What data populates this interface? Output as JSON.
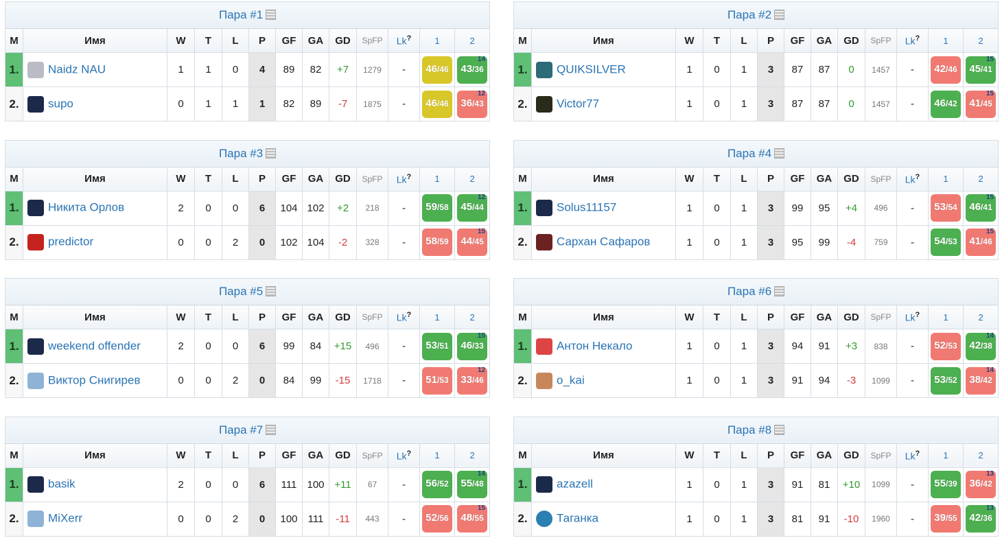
{
  "headers": {
    "m": "M",
    "name": "Имя",
    "w": "W",
    "t": "T",
    "l": "L",
    "p": "P",
    "gf": "GF",
    "ga": "GA",
    "gd": "GD",
    "spfp": "SpFP",
    "lk": "Lk",
    "lk_help": "?",
    "g1": "1",
    "g2": "2"
  },
  "colors": {
    "win": "#4caf50",
    "lose": "#f07a72",
    "draw": "#d8c728",
    "leader": "#5fbf75",
    "link": "#2a74b4"
  },
  "pairs": [
    {
      "title": "Пара #1",
      "rows": [
        {
          "pos": "1.",
          "name": "Naidz NAU",
          "avatar": "arrow-avatar-icon",
          "w": "1",
          "t": "1",
          "l": "0",
          "p": "4",
          "gf": "89",
          "ga": "82",
          "gd": "+7",
          "spfp": "1279",
          "lk": "-",
          "games": [
            {
              "s": "46",
              "c": "46",
              "r": "draw",
              "rd": ""
            },
            {
              "s": "43",
              "c": "36",
              "r": "win",
              "rd": "14"
            }
          ]
        },
        {
          "pos": "2.",
          "name": "supo",
          "avatar": "jersey-avatar-icon",
          "w": "0",
          "t": "1",
          "l": "1",
          "p": "1",
          "gf": "82",
          "ga": "89",
          "gd": "-7",
          "spfp": "1875",
          "lk": "-",
          "games": [
            {
              "s": "46",
              "c": "46",
              "r": "draw",
              "rd": ""
            },
            {
              "s": "36",
              "c": "43",
              "r": "lose",
              "rd": "12"
            }
          ]
        }
      ]
    },
    {
      "title": "Пара #2",
      "rows": [
        {
          "pos": "1.",
          "name": "QUIKSILVER",
          "avatar": "wave-avatar-icon",
          "w": "1",
          "t": "0",
          "l": "1",
          "p": "3",
          "gf": "87",
          "ga": "87",
          "gd": "0",
          "spfp": "1457",
          "lk": "-",
          "games": [
            {
              "s": "42",
              "c": "46",
              "r": "lose",
              "rd": ""
            },
            {
              "s": "45",
              "c": "41",
              "r": "win",
              "rd": "15"
            }
          ]
        },
        {
          "pos": "2.",
          "name": "Victor77",
          "avatar": "number-avatar-icon",
          "w": "1",
          "t": "0",
          "l": "1",
          "p": "3",
          "gf": "87",
          "ga": "87",
          "gd": "0",
          "spfp": "1457",
          "lk": "-",
          "games": [
            {
              "s": "46",
              "c": "42",
              "r": "win",
              "rd": ""
            },
            {
              "s": "41",
              "c": "45",
              "r": "lose",
              "rd": "15"
            }
          ]
        }
      ]
    },
    {
      "title": "Пара #3",
      "rows": [
        {
          "pos": "1.",
          "name": "Никита Орлов",
          "avatar": "jersey-avatar-icon",
          "w": "2",
          "t": "0",
          "l": "0",
          "p": "6",
          "gf": "104",
          "ga": "102",
          "gd": "+2",
          "spfp": "218",
          "lk": "-",
          "games": [
            {
              "s": "59",
              "c": "58",
              "r": "win",
              "rd": ""
            },
            {
              "s": "45",
              "c": "44",
              "r": "win",
              "rd": "12"
            }
          ]
        },
        {
          "pos": "2.",
          "name": "predictor",
          "avatar": "badge-avatar-icon",
          "w": "0",
          "t": "0",
          "l": "2",
          "p": "0",
          "gf": "102",
          "ga": "104",
          "gd": "-2",
          "spfp": "328",
          "lk": "-",
          "games": [
            {
              "s": "58",
              "c": "59",
              "r": "lose",
              "rd": ""
            },
            {
              "s": "44",
              "c": "45",
              "r": "lose",
              "rd": "15"
            }
          ]
        }
      ]
    },
    {
      "title": "Пара #4",
      "rows": [
        {
          "pos": "1.",
          "name": "Solus11157",
          "avatar": "jersey-avatar-icon",
          "w": "1",
          "t": "0",
          "l": "1",
          "p": "3",
          "gf": "99",
          "ga": "95",
          "gd": "+4",
          "spfp": "496",
          "lk": "-",
          "games": [
            {
              "s": "53",
              "c": "54",
              "r": "lose",
              "rd": ""
            },
            {
              "s": "46",
              "c": "41",
              "r": "win",
              "rd": "15"
            }
          ]
        },
        {
          "pos": "2.",
          "name": "Сархан Сафаров",
          "avatar": "helmet-avatar-icon",
          "w": "1",
          "t": "0",
          "l": "1",
          "p": "3",
          "gf": "95",
          "ga": "99",
          "gd": "-4",
          "spfp": "759",
          "lk": "-",
          "games": [
            {
              "s": "54",
              "c": "53",
              "r": "win",
              "rd": ""
            },
            {
              "s": "41",
              "c": "46",
              "r": "lose",
              "rd": "15"
            }
          ]
        }
      ]
    },
    {
      "title": "Пара #5",
      "rows": [
        {
          "pos": "1.",
          "name": "weekend offender",
          "avatar": "jersey-avatar-icon",
          "w": "2",
          "t": "0",
          "l": "0",
          "p": "6",
          "gf": "99",
          "ga": "84",
          "gd": "+15",
          "spfp": "496",
          "lk": "-",
          "games": [
            {
              "s": "53",
              "c": "51",
              "r": "win",
              "rd": ""
            },
            {
              "s": "46",
              "c": "33",
              "r": "win",
              "rd": "15"
            }
          ]
        },
        {
          "pos": "2.",
          "name": "Виктор Снигирев",
          "avatar": "photo-avatar-icon",
          "w": "0",
          "t": "0",
          "l": "2",
          "p": "0",
          "gf": "84",
          "ga": "99",
          "gd": "-15",
          "spfp": "1718",
          "lk": "-",
          "games": [
            {
              "s": "51",
              "c": "53",
              "r": "lose",
              "rd": ""
            },
            {
              "s": "33",
              "c": "46",
              "r": "lose",
              "rd": "12"
            }
          ]
        }
      ]
    },
    {
      "title": "Пара #6",
      "rows": [
        {
          "pos": "1.",
          "name": "Антон Некало",
          "avatar": "logo-avatar-icon",
          "w": "1",
          "t": "0",
          "l": "1",
          "p": "3",
          "gf": "94",
          "ga": "91",
          "gd": "+3",
          "spfp": "838",
          "lk": "-",
          "games": [
            {
              "s": "52",
              "c": "53",
              "r": "lose",
              "rd": ""
            },
            {
              "s": "42",
              "c": "38",
              "r": "win",
              "rd": "14"
            }
          ]
        },
        {
          "pos": "2.",
          "name": "o_kai",
          "avatar": "face-avatar-icon",
          "w": "1",
          "t": "0",
          "l": "1",
          "p": "3",
          "gf": "91",
          "ga": "94",
          "gd": "-3",
          "spfp": "1099",
          "lk": "-",
          "games": [
            {
              "s": "53",
              "c": "52",
              "r": "win",
              "rd": ""
            },
            {
              "s": "38",
              "c": "42",
              "r": "lose",
              "rd": "14"
            }
          ]
        }
      ]
    },
    {
      "title": "Пара #7",
      "rows": [
        {
          "pos": "1.",
          "name": "basik",
          "avatar": "jersey-avatar-icon",
          "w": "2",
          "t": "0",
          "l": "0",
          "p": "6",
          "gf": "111",
          "ga": "100",
          "gd": "+11",
          "spfp": "67",
          "lk": "-",
          "games": [
            {
              "s": "56",
              "c": "52",
              "r": "win",
              "rd": ""
            },
            {
              "s": "55",
              "c": "48",
              "r": "win",
              "rd": "14"
            }
          ]
        },
        {
          "pos": "2.",
          "name": "MiXerr",
          "avatar": "photo-avatar-icon",
          "w": "0",
          "t": "0",
          "l": "2",
          "p": "0",
          "gf": "100",
          "ga": "111",
          "gd": "-11",
          "spfp": "443",
          "lk": "-",
          "games": [
            {
              "s": "52",
              "c": "56",
              "r": "lose",
              "rd": ""
            },
            {
              "s": "48",
              "c": "55",
              "r": "lose",
              "rd": "15"
            }
          ]
        }
      ]
    },
    {
      "title": "Пара #8",
      "rows": [
        {
          "pos": "1.",
          "name": "azazell",
          "avatar": "jersey-avatar-icon",
          "w": "1",
          "t": "0",
          "l": "1",
          "p": "3",
          "gf": "91",
          "ga": "81",
          "gd": "+10",
          "spfp": "1099",
          "lk": "-",
          "games": [
            {
              "s": "55",
              "c": "39",
              "r": "win",
              "rd": ""
            },
            {
              "s": "36",
              "c": "42",
              "r": "lose",
              "rd": "13"
            }
          ]
        },
        {
          "pos": "2.",
          "name": "Таганка",
          "avatar": "circle-avatar-icon",
          "w": "1",
          "t": "0",
          "l": "1",
          "p": "3",
          "gf": "81",
          "ga": "91",
          "gd": "-10",
          "spfp": "1960",
          "lk": "-",
          "games": [
            {
              "s": "39",
              "c": "55",
              "r": "lose",
              "rd": ""
            },
            {
              "s": "42",
              "c": "36",
              "r": "win",
              "rd": "13"
            }
          ]
        }
      ]
    }
  ]
}
